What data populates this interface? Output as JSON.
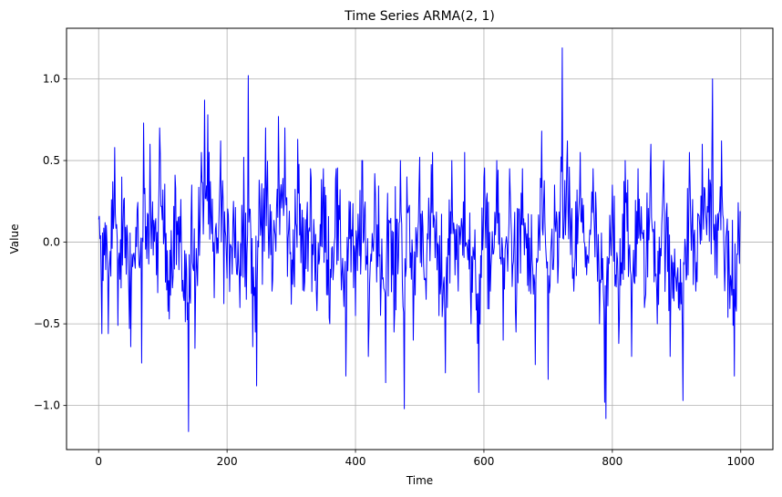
{
  "chart_data": {
    "type": "line",
    "title": "Time Series ARMA(2, 1)",
    "xlabel": "Time",
    "ylabel": "Value",
    "xlim": [
      -50,
      1050
    ],
    "ylim": [
      -1.27,
      1.31
    ],
    "x_ticks": [
      0,
      200,
      400,
      600,
      800,
      1000
    ],
    "x_tick_labels": [
      "0",
      "200",
      "400",
      "600",
      "800",
      "1000"
    ],
    "y_ticks": [
      -1.0,
      -0.5,
      0.0,
      0.5,
      1.0
    ],
    "y_tick_labels": [
      "−1.0",
      "−0.5",
      "0.0",
      "0.5",
      "1.0"
    ],
    "grid": true,
    "series": [
      {
        "color": "#0000ff",
        "x_start": 0,
        "x_step": 1,
        "n_points": 1000,
        "keypoints_x": [
          0,
          5,
          10,
          15,
          20,
          25,
          30,
          40,
          50,
          60,
          67,
          70,
          75,
          80,
          90,
          95,
          100,
          110,
          120,
          130,
          140,
          145,
          150,
          160,
          165,
          170,
          180,
          190,
          200,
          210,
          220,
          226,
          230,
          233,
          240,
          246,
          250,
          260,
          270,
          280,
          290,
          300,
          310,
          320,
          330,
          340,
          350,
          360,
          370,
          385,
          390,
          400,
          410,
          420,
          430,
          440,
          447,
          450,
          460,
          470,
          476,
          480,
          490,
          500,
          510,
          520,
          530,
          540,
          550,
          560,
          570,
          580,
          590,
          592,
          600,
          610,
          620,
          630,
          640,
          650,
          660,
          670,
          680,
          690,
          700,
          710,
          715,
          722,
          725,
          730,
          740,
          750,
          760,
          770,
          780,
          788,
          790,
          800,
          810,
          820,
          830,
          840,
          850,
          860,
          870,
          880,
          890,
          900,
          910,
          920,
          930,
          940,
          950,
          956,
          960,
          970,
          980,
          990,
          999
        ],
        "keypoints_y": [
          0.14,
          -0.56,
          0.12,
          -0.56,
          0.26,
          0.58,
          -0.51,
          0.27,
          -0.64,
          0.2,
          -0.74,
          0.73,
          -0.1,
          0.6,
          -0.2,
          0.7,
          0.32,
          -0.47,
          0.33,
          -0.3,
          -1.16,
          0.35,
          -0.65,
          0.55,
          0.87,
          0.78,
          -0.34,
          0.62,
          -0.22,
          0.25,
          -0.4,
          0.52,
          -0.35,
          1.02,
          -0.64,
          -0.88,
          0.38,
          0.7,
          -0.3,
          0.77,
          0.7,
          -0.38,
          0.63,
          -0.3,
          0.45,
          -0.42,
          0.45,
          -0.5,
          0.45,
          -0.82,
          0.25,
          -0.45,
          0.5,
          -0.7,
          0.42,
          -0.25,
          -0.86,
          0.3,
          -0.55,
          0.5,
          -1.02,
          0.4,
          -0.6,
          0.52,
          -0.35,
          0.55,
          -0.45,
          -0.8,
          0.5,
          -0.3,
          0.55,
          -0.5,
          -0.62,
          -0.92,
          0.4,
          -0.3,
          0.5,
          -0.6,
          0.45,
          -0.55,
          0.45,
          -0.3,
          -0.75,
          0.68,
          -0.84,
          0.35,
          -0.25,
          1.19,
          0.15,
          0.62,
          -0.3,
          0.55,
          -0.2,
          0.45,
          -0.5,
          -0.98,
          -1.08,
          0.35,
          -0.62,
          0.5,
          -0.7,
          0.45,
          -0.4,
          0.6,
          -0.5,
          0.5,
          -0.7,
          -0.3,
          -0.97,
          0.55,
          -0.3,
          0.6,
          0.45,
          1.0,
          -0.2,
          0.62,
          -0.46,
          -0.82,
          0.19
        ]
      }
    ]
  }
}
